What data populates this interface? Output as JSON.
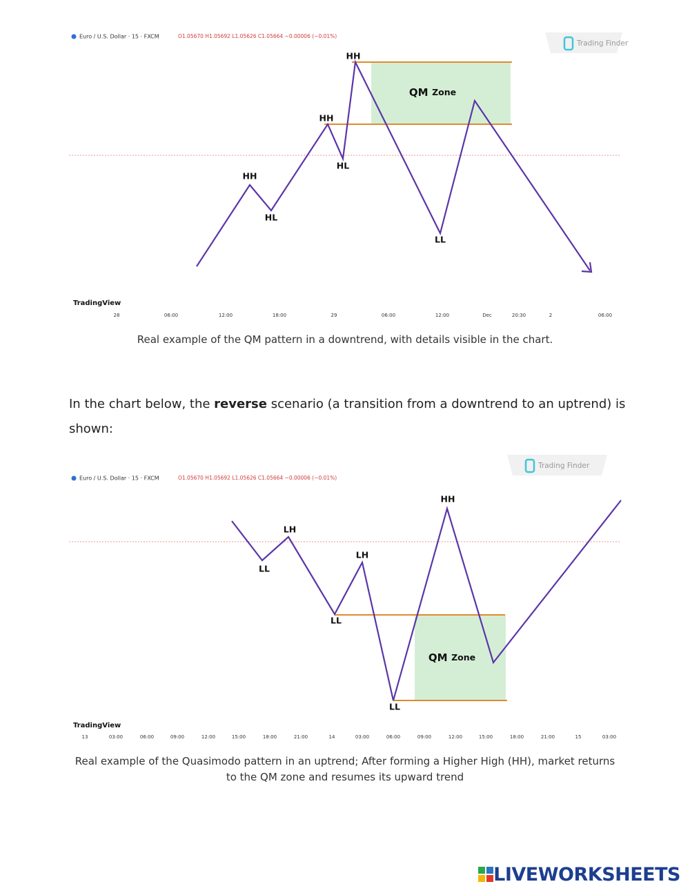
{
  "chart1": {
    "header": "Euro / U.S. Dollar · 15 · FXCM",
    "ohlc": "O1.05670 H1.05692 L1.05626 C1.05664 −0.00006 (−0.01%)",
    "watermark": "Trading Finder",
    "brand": "TradingView",
    "zone_qm": "QM",
    "zone_word": "Zone",
    "labels": [
      "HH",
      "HH",
      "HH",
      "HL",
      "HL",
      "LL"
    ],
    "xticks": [
      "28",
      "06:00",
      "12:00",
      "18:00",
      "29",
      "06:00",
      "12:00",
      "Dec",
      "20:30",
      "2",
      "06:00"
    ]
  },
  "caption1": "Real example of the QM pattern in a downtrend, with details visible in the chart.",
  "paragraph": {
    "before": "In the chart below, the ",
    "bold": "reverse",
    "after": " scenario (a transition from a downtrend to an uptrend) is shown:"
  },
  "chart2": {
    "header": "Euro / U.S. Dollar · 15 · FXCM",
    "ohlc": "O1.05670 H1.05692 L1.05626 C1.05664 −0.00006 (−0.01%)",
    "watermark": "Trading Finder",
    "brand": "TradingView",
    "zone_qm": "QM",
    "zone_word": "Zone",
    "labels": [
      "LH",
      "LL",
      "LH",
      "LL",
      "LL",
      "HH"
    ],
    "xticks": [
      "13",
      "03:00",
      "06:00",
      "09:00",
      "12:00",
      "15:00",
      "18:00",
      "21:00",
      "14",
      "03:00",
      "06:00",
      "09:00",
      "12:00",
      "15:00",
      "18:00",
      "21:00",
      "15",
      "03:00"
    ]
  },
  "caption2": "Real example of the Quasimodo pattern in an uptrend; After forming a Higher High (HH), market returns to the QM zone and resumes its upward trend",
  "footer": {
    "logo": "LIVEWORKSHEETS"
  }
}
